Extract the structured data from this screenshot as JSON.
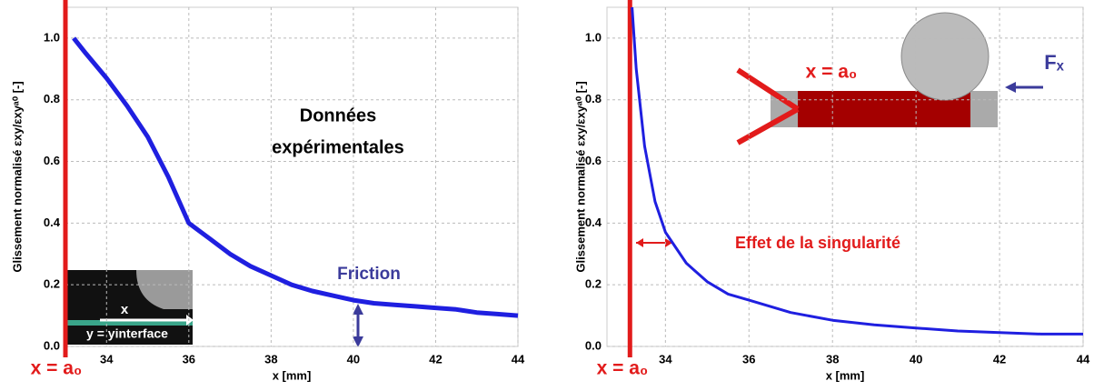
{
  "chart_data": [
    {
      "type": "line",
      "xlabel": "x [mm]",
      "ylabel": "Glissement normalisé  εxy/εxyᵃ⁰ [-]",
      "x": [
        33.2,
        33.5,
        34,
        34.5,
        35,
        35.5,
        36,
        36.5,
        37,
        37.5,
        38,
        38.5,
        39,
        39.5,
        40,
        40.5,
        41,
        41.5,
        42,
        42.5,
        43,
        43.5,
        44
      ],
      "values": [
        1.0,
        0.95,
        0.87,
        0.78,
        0.68,
        0.55,
        0.4,
        0.35,
        0.3,
        0.26,
        0.23,
        0.2,
        0.18,
        0.165,
        0.15,
        0.14,
        0.135,
        0.13,
        0.125,
        0.12,
        0.11,
        0.105,
        0.1
      ],
      "color": "#1f1fe0",
      "vline": 33,
      "vline_color": "#e21b1b",
      "xlim": [
        33,
        44
      ],
      "ylim": [
        0,
        1.1
      ],
      "xticks": [
        34,
        36,
        38,
        40,
        42,
        44
      ],
      "yticks": [
        {
          "value": 0,
          "label": "0.0"
        },
        0.2,
        0.4,
        0.6,
        0.8,
        {
          "value": 1,
          "label": "1.0"
        }
      ],
      "grid": true,
      "annotations": [
        "Données",
        "expérimentales",
        "Friction",
        "x = a₀",
        "x",
        "y = yinterface"
      ]
    },
    {
      "type": "line",
      "xlabel": "x [mm]",
      "ylabel": "Glissement normalisé  εxy/εxyᵃ⁰ [-]",
      "x": [
        33.2,
        33.3,
        33.5,
        33.75,
        34,
        34.5,
        35,
        35.5,
        36,
        37,
        38,
        39,
        40,
        41,
        42,
        43,
        44
      ],
      "values": [
        1.1,
        0.9,
        0.65,
        0.47,
        0.37,
        0.27,
        0.21,
        0.17,
        0.15,
        0.11,
        0.085,
        0.07,
        0.06,
        0.05,
        0.045,
        0.04,
        0.04
      ],
      "color": "#1f1fe0",
      "vline": 33.15,
      "vline_color": "#e21b1b",
      "xlim": [
        32.6,
        44
      ],
      "ylim": [
        0,
        1.1
      ],
      "xticks": [
        34,
        36,
        38,
        40,
        42,
        44
      ],
      "yticks": [
        {
          "value": 0,
          "label": "0.0"
        },
        0.2,
        0.4,
        0.6,
        0.8,
        {
          "value": 1,
          "label": "1.0"
        }
      ],
      "grid": true,
      "annotations": [
        "x = a₀",
        "Fₓ",
        "Effet de la singularité",
        "x = a₀"
      ]
    }
  ]
}
